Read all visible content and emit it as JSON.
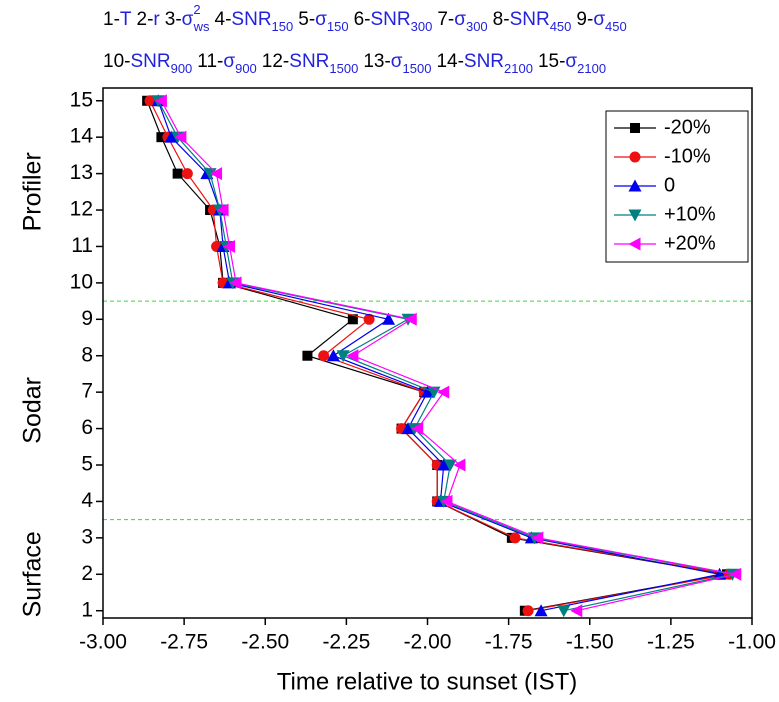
{
  "chart_data": {
    "type": "line",
    "x_label": "Time relative to sunset (IST)",
    "header": [
      [
        {
          "prefix": "1-",
          "name": "T"
        },
        {
          "prefix": "2-",
          "name": "r"
        },
        {
          "prefix": "3-",
          "name": "σ",
          "sup": "2",
          "sub": "ws"
        },
        {
          "prefix": "4-",
          "name": "SNR",
          "sub": "150"
        },
        {
          "prefix": "5-",
          "name": "σ",
          "sub": "150"
        },
        {
          "prefix": "6-",
          "name": "SNR",
          "sub": "300"
        },
        {
          "prefix": "7-",
          "name": "σ",
          "sub": "300"
        },
        {
          "prefix": "8-",
          "name": "SNR",
          "sub": "450"
        },
        {
          "prefix": "9-",
          "name": "σ",
          "sub": "450"
        }
      ],
      [
        {
          "prefix": "10-",
          "name": "SNR",
          "sub": "900"
        },
        {
          "prefix": "11-",
          "name": "σ",
          "sub": "900"
        },
        {
          "prefix": "12-",
          "name": "SNR",
          "sub": "1500"
        },
        {
          "prefix": "13-",
          "name": "σ",
          "sub": "1500"
        },
        {
          "prefix": "14-",
          "name": "SNR",
          "sub": "2100"
        },
        {
          "prefix": "15-",
          "name": "σ",
          "sub": "2100"
        }
      ]
    ],
    "regions": [
      "Profiler",
      "Sodar",
      "Surface"
    ],
    "reference_lines": {
      "values": [
        9.5,
        3.5
      ],
      "color": "#33dd33"
    },
    "y": [
      1,
      2,
      3,
      4,
      5,
      6,
      7,
      8,
      9,
      10,
      11,
      12,
      13,
      14,
      15
    ],
    "series": [
      {
        "name": "-20%",
        "color": "#000000",
        "marker": "square",
        "values": [
          -1.7,
          -1.077,
          -1.74,
          -1.97,
          -1.97,
          -2.08,
          -2.01,
          -2.37,
          -2.23,
          -2.63,
          -2.64,
          -2.67,
          -2.77,
          -2.82,
          -2.864
        ]
      },
      {
        "name": "-10%",
        "color": "#ee1111",
        "marker": "circle",
        "values": [
          -1.69,
          -1.07,
          -1.73,
          -1.97,
          -1.97,
          -2.08,
          -2.01,
          -2.32,
          -2.18,
          -2.63,
          -2.65,
          -2.66,
          -2.74,
          -2.8,
          -2.855
        ]
      },
      {
        "name": "0",
        "color": "#0000ee",
        "marker": "triangle-up",
        "values": [
          -1.65,
          -1.1,
          -1.68,
          -1.96,
          -1.95,
          -2.06,
          -2.0,
          -2.29,
          -2.12,
          -2.61,
          -2.63,
          -2.64,
          -2.68,
          -2.79,
          -2.83
        ]
      },
      {
        "name": "+10%",
        "color": "#008080",
        "marker": "triangle-down",
        "values": [
          -1.58,
          -1.06,
          -1.67,
          -1.95,
          -1.93,
          -2.04,
          -1.98,
          -2.26,
          -2.06,
          -2.6,
          -2.62,
          -2.64,
          -2.67,
          -2.77,
          -2.83
        ]
      },
      {
        "name": "+20%",
        "color": "#ff00ff",
        "marker": "triangle-left",
        "values": [
          -1.54,
          -1.05,
          -1.66,
          -1.94,
          -1.9,
          -2.03,
          -1.95,
          -2.23,
          -2.05,
          -2.59,
          -2.61,
          -2.63,
          -2.65,
          -2.76,
          -2.82
        ]
      }
    ],
    "xlim": [
      -3,
      -1
    ],
    "xticks": [
      {
        "value": -3,
        "label": "-3.00"
      },
      {
        "value": -2.75,
        "label": "-2.75"
      },
      {
        "value": -2.5,
        "label": "-2.50"
      },
      {
        "value": -2.25,
        "label": "-2.25"
      },
      {
        "value": -2,
        "label": "-2.00"
      },
      {
        "value": -1.75,
        "label": "-1.75"
      },
      {
        "value": -1.5,
        "label": "-1.50"
      },
      {
        "value": -1.25,
        "label": "-1.25"
      },
      {
        "value": -1,
        "label": "-1.00"
      }
    ],
    "ylim": [
      0.8,
      15.35
    ],
    "yticks": [
      1,
      2,
      3,
      4,
      5,
      6,
      7,
      8,
      9,
      10,
      11,
      12,
      13,
      14,
      15
    ],
    "legend": "top-right"
  }
}
